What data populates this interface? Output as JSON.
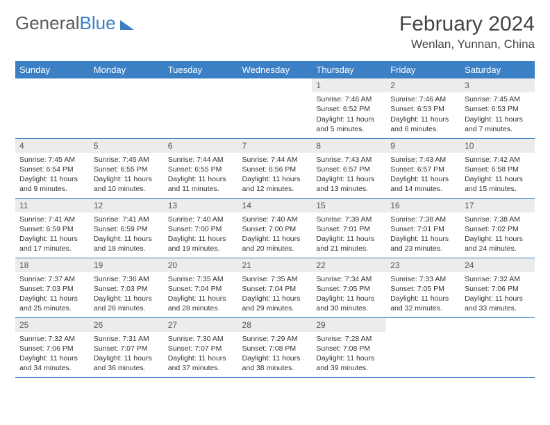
{
  "brand": {
    "part1": "General",
    "part2": "Blue"
  },
  "title": "February 2024",
  "location": "Wenlan, Yunnan, China",
  "colors": {
    "header_bg": "#3b7fc4",
    "header_text": "#ffffff",
    "daynum_bg": "#ececec",
    "row_border": "#3b7fc4",
    "body_text": "#333333",
    "page_bg": "#ffffff"
  },
  "weekdays": [
    "Sunday",
    "Monday",
    "Tuesday",
    "Wednesday",
    "Thursday",
    "Friday",
    "Saturday"
  ],
  "weeks": [
    [
      null,
      null,
      null,
      null,
      {
        "n": "1",
        "sr": "Sunrise: 7:46 AM",
        "ss": "Sunset: 6:52 PM",
        "dl": "Daylight: 11 hours and 5 minutes."
      },
      {
        "n": "2",
        "sr": "Sunrise: 7:46 AM",
        "ss": "Sunset: 6:53 PM",
        "dl": "Daylight: 11 hours and 6 minutes."
      },
      {
        "n": "3",
        "sr": "Sunrise: 7:45 AM",
        "ss": "Sunset: 6:53 PM",
        "dl": "Daylight: 11 hours and 7 minutes."
      }
    ],
    [
      {
        "n": "4",
        "sr": "Sunrise: 7:45 AM",
        "ss": "Sunset: 6:54 PM",
        "dl": "Daylight: 11 hours and 9 minutes."
      },
      {
        "n": "5",
        "sr": "Sunrise: 7:45 AM",
        "ss": "Sunset: 6:55 PM",
        "dl": "Daylight: 11 hours and 10 minutes."
      },
      {
        "n": "6",
        "sr": "Sunrise: 7:44 AM",
        "ss": "Sunset: 6:55 PM",
        "dl": "Daylight: 11 hours and 11 minutes."
      },
      {
        "n": "7",
        "sr": "Sunrise: 7:44 AM",
        "ss": "Sunset: 6:56 PM",
        "dl": "Daylight: 11 hours and 12 minutes."
      },
      {
        "n": "8",
        "sr": "Sunrise: 7:43 AM",
        "ss": "Sunset: 6:57 PM",
        "dl": "Daylight: 11 hours and 13 minutes."
      },
      {
        "n": "9",
        "sr": "Sunrise: 7:43 AM",
        "ss": "Sunset: 6:57 PM",
        "dl": "Daylight: 11 hours and 14 minutes."
      },
      {
        "n": "10",
        "sr": "Sunrise: 7:42 AM",
        "ss": "Sunset: 6:58 PM",
        "dl": "Daylight: 11 hours and 15 minutes."
      }
    ],
    [
      {
        "n": "11",
        "sr": "Sunrise: 7:41 AM",
        "ss": "Sunset: 6:59 PM",
        "dl": "Daylight: 11 hours and 17 minutes."
      },
      {
        "n": "12",
        "sr": "Sunrise: 7:41 AM",
        "ss": "Sunset: 6:59 PM",
        "dl": "Daylight: 11 hours and 18 minutes."
      },
      {
        "n": "13",
        "sr": "Sunrise: 7:40 AM",
        "ss": "Sunset: 7:00 PM",
        "dl": "Daylight: 11 hours and 19 minutes."
      },
      {
        "n": "14",
        "sr": "Sunrise: 7:40 AM",
        "ss": "Sunset: 7:00 PM",
        "dl": "Daylight: 11 hours and 20 minutes."
      },
      {
        "n": "15",
        "sr": "Sunrise: 7:39 AM",
        "ss": "Sunset: 7:01 PM",
        "dl": "Daylight: 11 hours and 21 minutes."
      },
      {
        "n": "16",
        "sr": "Sunrise: 7:38 AM",
        "ss": "Sunset: 7:01 PM",
        "dl": "Daylight: 11 hours and 23 minutes."
      },
      {
        "n": "17",
        "sr": "Sunrise: 7:38 AM",
        "ss": "Sunset: 7:02 PM",
        "dl": "Daylight: 11 hours and 24 minutes."
      }
    ],
    [
      {
        "n": "18",
        "sr": "Sunrise: 7:37 AM",
        "ss": "Sunset: 7:03 PM",
        "dl": "Daylight: 11 hours and 25 minutes."
      },
      {
        "n": "19",
        "sr": "Sunrise: 7:36 AM",
        "ss": "Sunset: 7:03 PM",
        "dl": "Daylight: 11 hours and 26 minutes."
      },
      {
        "n": "20",
        "sr": "Sunrise: 7:35 AM",
        "ss": "Sunset: 7:04 PM",
        "dl": "Daylight: 11 hours and 28 minutes."
      },
      {
        "n": "21",
        "sr": "Sunrise: 7:35 AM",
        "ss": "Sunset: 7:04 PM",
        "dl": "Daylight: 11 hours and 29 minutes."
      },
      {
        "n": "22",
        "sr": "Sunrise: 7:34 AM",
        "ss": "Sunset: 7:05 PM",
        "dl": "Daylight: 11 hours and 30 minutes."
      },
      {
        "n": "23",
        "sr": "Sunrise: 7:33 AM",
        "ss": "Sunset: 7:05 PM",
        "dl": "Daylight: 11 hours and 32 minutes."
      },
      {
        "n": "24",
        "sr": "Sunrise: 7:32 AM",
        "ss": "Sunset: 7:06 PM",
        "dl": "Daylight: 11 hours and 33 minutes."
      }
    ],
    [
      {
        "n": "25",
        "sr": "Sunrise: 7:32 AM",
        "ss": "Sunset: 7:06 PM",
        "dl": "Daylight: 11 hours and 34 minutes."
      },
      {
        "n": "26",
        "sr": "Sunrise: 7:31 AM",
        "ss": "Sunset: 7:07 PM",
        "dl": "Daylight: 11 hours and 36 minutes."
      },
      {
        "n": "27",
        "sr": "Sunrise: 7:30 AM",
        "ss": "Sunset: 7:07 PM",
        "dl": "Daylight: 11 hours and 37 minutes."
      },
      {
        "n": "28",
        "sr": "Sunrise: 7:29 AM",
        "ss": "Sunset: 7:08 PM",
        "dl": "Daylight: 11 hours and 38 minutes."
      },
      {
        "n": "29",
        "sr": "Sunrise: 7:28 AM",
        "ss": "Sunset: 7:08 PM",
        "dl": "Daylight: 11 hours and 39 minutes."
      },
      null,
      null
    ]
  ]
}
